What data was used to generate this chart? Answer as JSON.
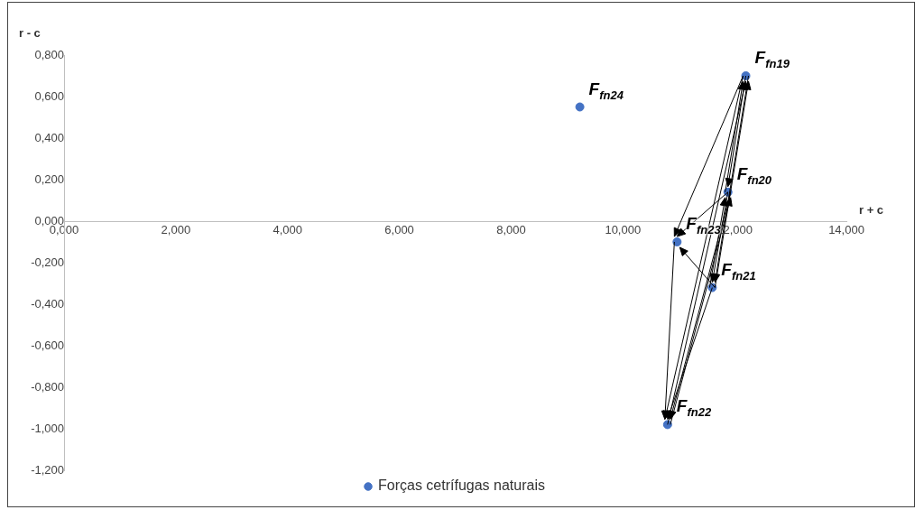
{
  "chart_data": {
    "type": "scatter",
    "xlabel": "r + c",
    "ylabel": "r - c",
    "x": [
      12.2,
      11.88,
      11.6,
      10.8,
      10.97,
      9.23
    ],
    "series": [
      {
        "name": "Forças cetrífugas naturais",
        "color": "#4472c4",
        "values": [
          0.7,
          0.14,
          -0.32,
          -0.98,
          -0.1,
          0.55
        ]
      }
    ],
    "xlim": [
      0,
      14
    ],
    "xticks": [
      {
        "value": 0,
        "label": "0,000"
      },
      {
        "value": 2,
        "label": "2,000"
      },
      {
        "value": 4,
        "label": "4,000"
      },
      {
        "value": 6,
        "label": "6,000"
      },
      {
        "value": 8,
        "label": "8,000"
      },
      {
        "value": 10,
        "label": "10,000"
      },
      {
        "value": 12,
        "label": "12,000"
      },
      {
        "value": 14,
        "label": "14,000"
      }
    ],
    "ylim": [
      -1.2,
      0.8
    ],
    "yticks": [
      {
        "value": -1.2,
        "label": "-1,200"
      },
      {
        "value": -1,
        "label": "-1,000"
      },
      {
        "value": -0.8,
        "label": "-0,800"
      },
      {
        "value": -0.6,
        "label": "-0,600"
      },
      {
        "value": -0.4,
        "label": "-0,400"
      },
      {
        "value": -0.2,
        "label": "-0,200"
      },
      {
        "value": 0,
        "label": "0,000"
      },
      {
        "value": 0.2,
        "label": "0,200"
      },
      {
        "value": 0.4,
        "label": "0,400"
      },
      {
        "value": 0.6,
        "label": "0,600"
      },
      {
        "value": 0.8,
        "label": "0,800"
      }
    ],
    "annotations": [
      {
        "text": "F$_{fn19}$",
        "x": 12.2,
        "y": 0.7
      },
      {
        "text": "F$_{fn20}$",
        "x": 11.88,
        "y": 0.14
      },
      {
        "text": "F$_{fn21}$",
        "x": 11.6,
        "y": -0.32
      },
      {
        "text": "F$_{fn22}$",
        "x": 10.8,
        "y": -0.98
      },
      {
        "text": "F$_{fn23}$",
        "x": 10.97,
        "y": -0.1
      },
      {
        "text": "F$_{fn24}$",
        "x": 9.23,
        "y": 0.55
      }
    ],
    "grid": false,
    "legend": "bottom",
    "marker": "circle"
  }
}
